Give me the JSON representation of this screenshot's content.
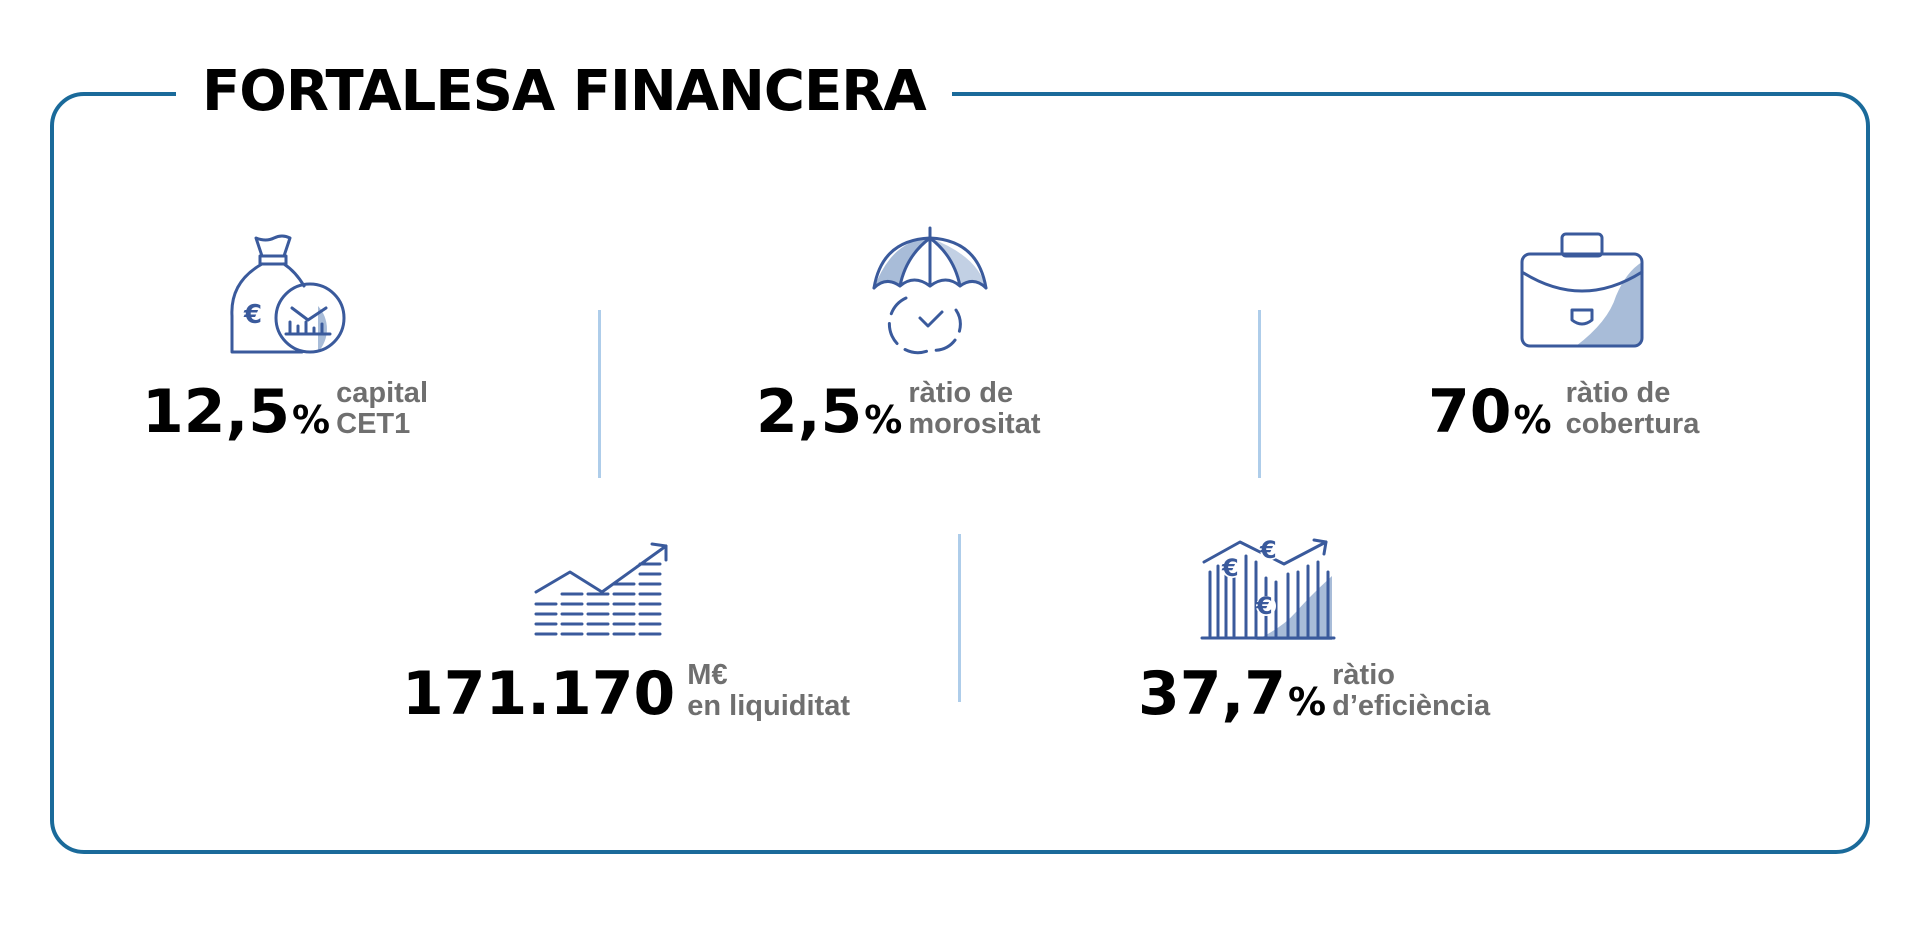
{
  "title": "FORTALESA FINANCERA",
  "colors": {
    "frame": "#1a6a9a",
    "icon_stroke": "#3a5a9c",
    "icon_fill": "#a8bcd8",
    "separator": "#aecdea",
    "label_grey": "#6f6f6f"
  },
  "stats": [
    {
      "icon": "money-bag-icon",
      "value": "12,5",
      "unit": "%",
      "label_line1": "capital",
      "label_line2": "CET1"
    },
    {
      "icon": "umbrella-icon",
      "value": "2,5",
      "unit": "%",
      "label_line1": "ràtio de",
      "label_line2": "morositat"
    },
    {
      "icon": "briefcase-icon",
      "value": "70",
      "unit": "%",
      "label_line1": "ràtio de",
      "label_line2": "cobertura"
    },
    {
      "icon": "growth-chart-icon",
      "value": "171.170",
      "unit": "",
      "label_line1": "M€",
      "label_line2": "en liquiditat"
    },
    {
      "icon": "euro-bars-icon",
      "value": "37,7",
      "unit": "%",
      "label_line1": "ràtio",
      "label_line2": "d’eficiència"
    }
  ],
  "icon_glyphs": {
    "euro": "€"
  }
}
